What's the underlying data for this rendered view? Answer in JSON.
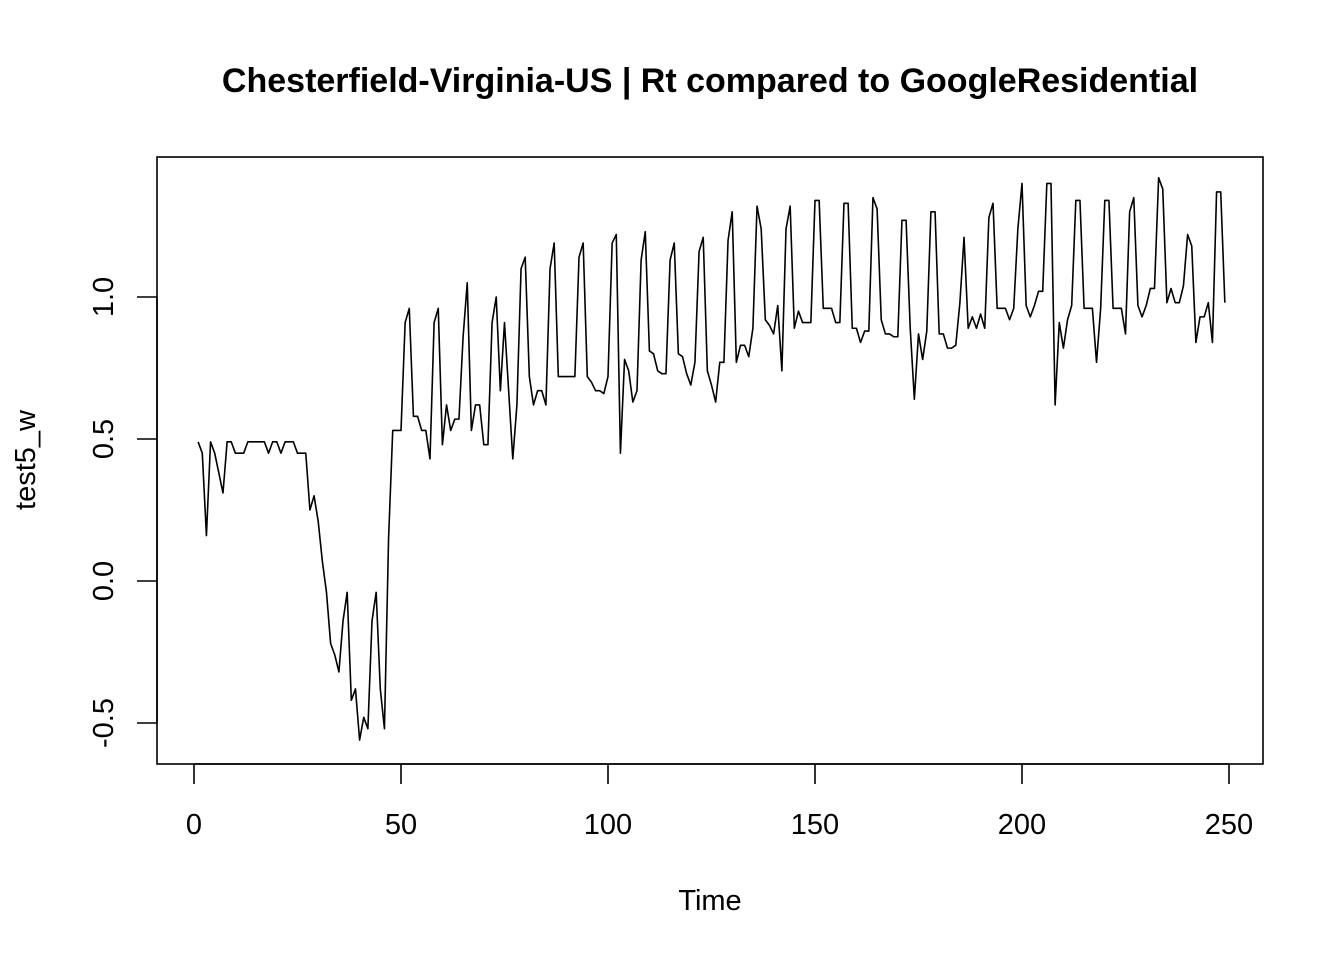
{
  "chart_data": {
    "type": "line",
    "title": "Chesterfield-Virginia-US | Rt compared to GoogleResidential",
    "xlabel": "Time",
    "ylabel": "test5_w",
    "xlim": [
      0,
      250
    ],
    "ylim": [
      -0.5,
      1.0
    ],
    "x_ticks": [
      0,
      50,
      100,
      150,
      200,
      250
    ],
    "y_ticks": [
      -0.5,
      0.0,
      0.5,
      1.0
    ],
    "x_tick_labels": [
      "0",
      "50",
      "100",
      "150",
      "200",
      "250"
    ],
    "y_tick_labels": [
      "-0.5",
      "0.0",
      "0.5",
      "1.0"
    ],
    "grid": false,
    "legend": "none",
    "line_color": "#000000",
    "x_start": 1,
    "values": [
      0.49,
      0.45,
      0.16,
      0.49,
      0.45,
      0.38,
      0.31,
      0.49,
      0.49,
      0.45,
      0.45,
      0.45,
      0.49,
      0.49,
      0.49,
      0.49,
      0.49,
      0.45,
      0.49,
      0.49,
      0.45,
      0.49,
      0.49,
      0.49,
      0.45,
      0.45,
      0.45,
      0.25,
      0.3,
      0.21,
      0.07,
      -0.04,
      -0.22,
      -0.26,
      -0.32,
      -0.14,
      -0.04,
      -0.42,
      -0.38,
      -0.56,
      -0.48,
      -0.52,
      -0.14,
      -0.04,
      -0.38,
      -0.52,
      0.15,
      0.53,
      0.53,
      0.53,
      0.91,
      0.96,
      0.58,
      0.58,
      0.53,
      0.53,
      0.43,
      0.91,
      0.96,
      0.48,
      0.62,
      0.53,
      0.57,
      0.57,
      0.86,
      1.05,
      0.53,
      0.62,
      0.62,
      0.48,
      0.48,
      0.91,
      1.0,
      0.67,
      0.91,
      0.67,
      0.43,
      0.62,
      1.1,
      1.14,
      0.72,
      0.62,
      0.67,
      0.67,
      0.62,
      1.1,
      1.19,
      0.72,
      0.72,
      0.72,
      0.72,
      0.72,
      1.14,
      1.19,
      0.72,
      0.7,
      0.67,
      0.67,
      0.66,
      0.72,
      1.19,
      1.22,
      0.45,
      0.78,
      0.74,
      0.63,
      0.67,
      1.13,
      1.23,
      0.81,
      0.8,
      0.74,
      0.73,
      0.73,
      1.13,
      1.19,
      0.8,
      0.79,
      0.73,
      0.69,
      0.77,
      1.16,
      1.21,
      0.74,
      0.69,
      0.63,
      0.77,
      0.77,
      1.2,
      1.3,
      0.77,
      0.83,
      0.83,
      0.79,
      0.89,
      1.32,
      1.24,
      0.92,
      0.9,
      0.87,
      0.97,
      0.74,
      1.24,
      1.32,
      0.89,
      0.95,
      0.91,
      0.91,
      0.91,
      1.34,
      1.34,
      0.96,
      0.96,
      0.96,
      0.91,
      0.91,
      1.33,
      1.33,
      0.89,
      0.89,
      0.84,
      0.88,
      0.88,
      1.35,
      1.31,
      0.92,
      0.87,
      0.87,
      0.86,
      0.86,
      1.27,
      1.27,
      0.89,
      0.64,
      0.87,
      0.78,
      0.88,
      1.3,
      1.3,
      0.87,
      0.87,
      0.82,
      0.82,
      0.83,
      0.98,
      1.21,
      0.89,
      0.93,
      0.89,
      0.94,
      0.89,
      1.28,
      1.33,
      0.96,
      0.96,
      0.96,
      0.92,
      0.96,
      1.24,
      1.4,
      0.97,
      0.93,
      0.97,
      1.02,
      1.02,
      1.4,
      1.4,
      0.62,
      0.91,
      0.82,
      0.92,
      0.97,
      1.34,
      1.34,
      0.96,
      0.96,
      0.96,
      0.77,
      0.96,
      1.34,
      1.34,
      0.96,
      0.96,
      0.96,
      0.87,
      1.3,
      1.35,
      0.97,
      0.93,
      0.97,
      1.03,
      1.03,
      1.42,
      1.38,
      0.98,
      1.03,
      0.98,
      0.98,
      1.04,
      1.22,
      1.18,
      0.84,
      0.93,
      0.93,
      0.98,
      0.84,
      1.37,
      1.37,
      0.98
    ]
  }
}
